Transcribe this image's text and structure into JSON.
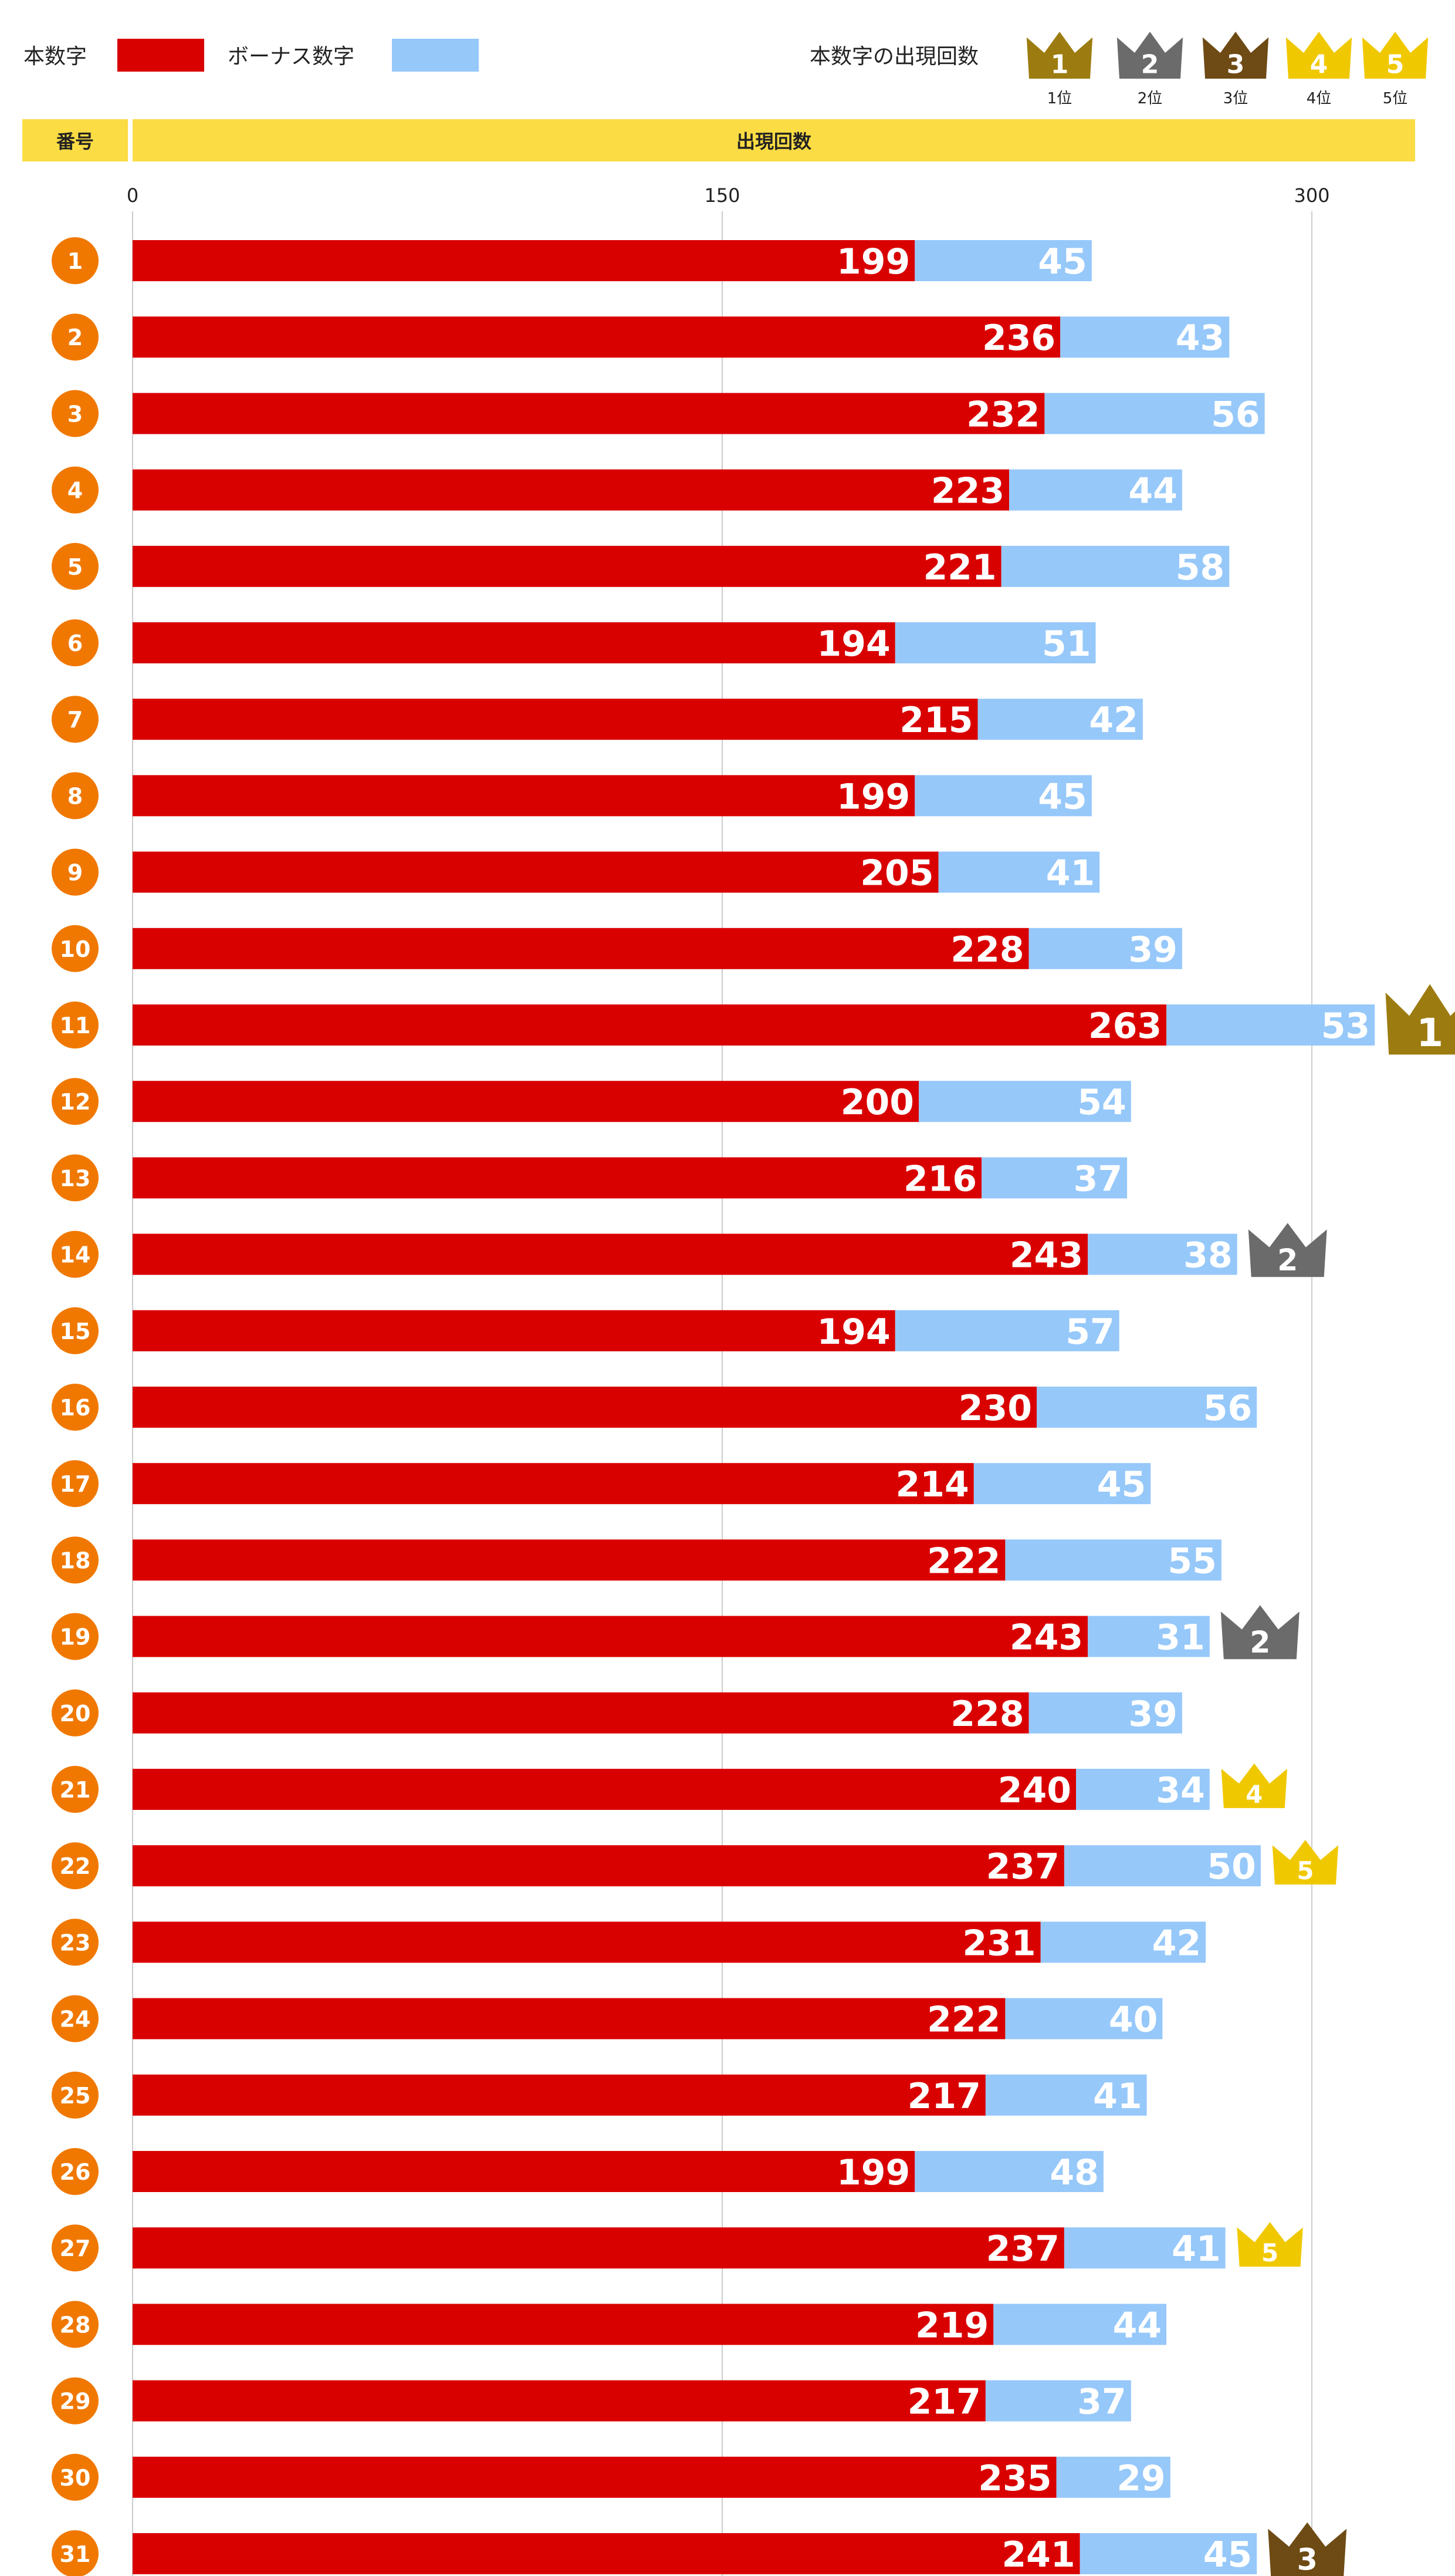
{
  "colors": {
    "main": "#d90000",
    "bonus": "#96c8fa",
    "header": "#fcdc44",
    "number_badge": "#f07800",
    "grid": "#cccccc",
    "rank": [
      "#9c7c10",
      "#6b6b6b",
      "#6e4a14",
      "#f0c800",
      "#f0c800"
    ]
  },
  "legend": {
    "main_label": "本数字",
    "bonus_label": "ボーナス数字",
    "rank_title": "本数字の出現回数",
    "ranks": [
      {
        "num": "1",
        "label": "1位"
      },
      {
        "num": "2",
        "label": "2位"
      },
      {
        "num": "3",
        "label": "3位"
      },
      {
        "num": "4",
        "label": "4位"
      },
      {
        "num": "5",
        "label": "5位"
      }
    ]
  },
  "header": {
    "number_col": "番号",
    "count_col": "出現回数"
  },
  "chart_data": {
    "type": "bar",
    "orientation": "horizontal",
    "stacked": true,
    "xlim": [
      0,
      330
    ],
    "xticks": [
      0,
      150,
      300
    ],
    "grid": true,
    "legend_position": "top",
    "categories": [
      "1",
      "2",
      "3",
      "4",
      "5",
      "6",
      "7",
      "8",
      "9",
      "10",
      "11",
      "12",
      "13",
      "14",
      "15",
      "16",
      "17",
      "18",
      "19",
      "20",
      "21",
      "22",
      "23",
      "24",
      "25",
      "26",
      "27",
      "28",
      "29",
      "30",
      "31"
    ],
    "series": [
      {
        "name": "本数字",
        "values": [
          199,
          236,
          232,
          223,
          221,
          194,
          215,
          199,
          205,
          228,
          263,
          200,
          216,
          243,
          194,
          230,
          214,
          222,
          243,
          228,
          240,
          237,
          231,
          222,
          217,
          199,
          237,
          219,
          217,
          235,
          241
        ]
      },
      {
        "name": "ボーナス数字",
        "values": [
          45,
          43,
          56,
          44,
          58,
          51,
          42,
          45,
          41,
          39,
          53,
          54,
          37,
          38,
          57,
          56,
          45,
          55,
          31,
          39,
          34,
          50,
          42,
          40,
          41,
          48,
          41,
          44,
          37,
          29,
          45
        ]
      }
    ],
    "rank_marks": [
      {
        "number": "11",
        "rank": 1
      },
      {
        "number": "14",
        "rank": 2
      },
      {
        "number": "19",
        "rank": 2
      },
      {
        "number": "31",
        "rank": 3
      },
      {
        "number": "21",
        "rank": 4
      },
      {
        "number": "22",
        "rank": 5
      },
      {
        "number": "27",
        "rank": 5
      }
    ]
  }
}
